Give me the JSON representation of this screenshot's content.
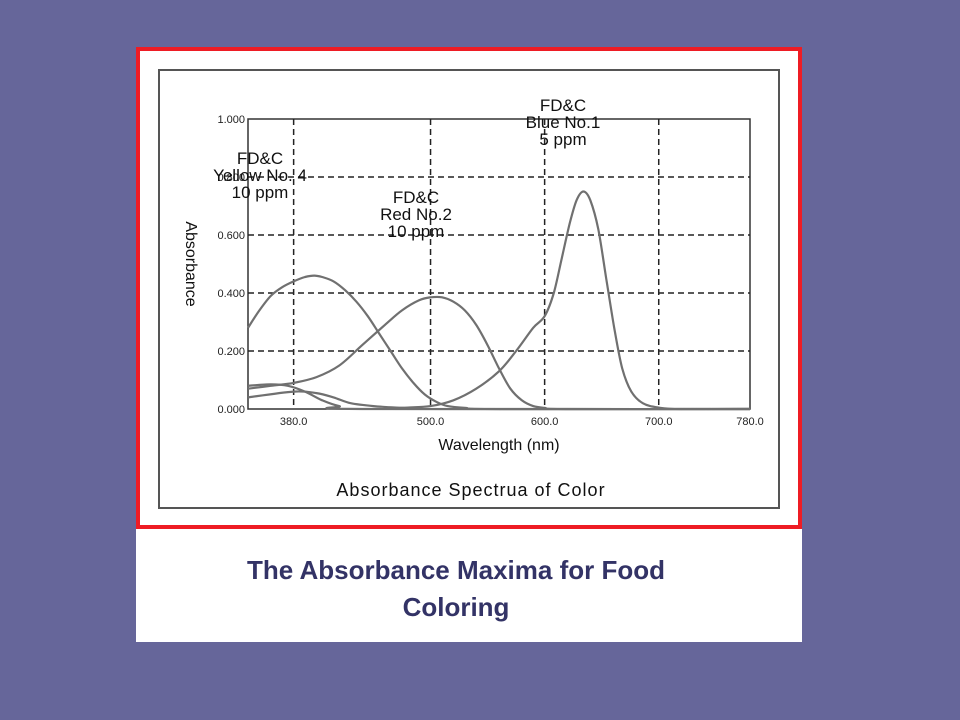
{
  "slide": {
    "caption_line1": "The Absorbance Maxima for Food",
    "caption_line2": "Coloring",
    "background_color": "#66669a",
    "frame_color": "#ee1c24",
    "caption_color": "#333366"
  },
  "chart_data": {
    "type": "line",
    "title": "Absorbance Spectrua of Color",
    "xlabel": "Wavelength (nm)",
    "ylabel": "Absorbance",
    "xlim": [
      340,
      780
    ],
    "ylim": [
      0,
      1.0
    ],
    "x_ticks": [
      380,
      500,
      600,
      700,
      780
    ],
    "x_tick_labels": [
      "380.0",
      "500.0",
      "600.0",
      "700.0",
      "780.0"
    ],
    "y_ticks": [
      0,
      0.2,
      0.4,
      0.6,
      0.8,
      1.0
    ],
    "y_tick_labels": [
      "0.000",
      "0.200",
      "0.400",
      "0.600",
      "0.800",
      "1.000"
    ],
    "grid": true,
    "legend": "none",
    "line_color": "#707070",
    "series": [
      {
        "points": [
          [
            340,
            0.28
          ],
          [
            350,
            0.34
          ],
          [
            360,
            0.39
          ],
          [
            370,
            0.42
          ],
          [
            380,
            0.44
          ],
          [
            390,
            0.455
          ],
          [
            398,
            0.46
          ],
          [
            405,
            0.455
          ],
          [
            415,
            0.44
          ],
          [
            425,
            0.41
          ],
          [
            435,
            0.37
          ],
          [
            445,
            0.32
          ],
          [
            455,
            0.26
          ],
          [
            465,
            0.2
          ],
          [
            475,
            0.14
          ],
          [
            485,
            0.09
          ],
          [
            495,
            0.05
          ],
          [
            505,
            0.025
          ],
          [
            515,
            0.01
          ],
          [
            530,
            0.004
          ],
          [
            560,
            0.0
          ],
          [
            780,
            0.0
          ]
        ],
        "annotation": [
          "FD&C",
          "Yellow No. 4",
          "10 ppm"
        ]
      },
      {
        "points": [
          [
            340,
            0.07
          ],
          [
            360,
            0.08
          ],
          [
            380,
            0.09
          ],
          [
            400,
            0.11
          ],
          [
            420,
            0.15
          ],
          [
            440,
            0.22
          ],
          [
            460,
            0.29
          ],
          [
            475,
            0.34
          ],
          [
            490,
            0.375
          ],
          [
            500,
            0.385
          ],
          [
            510,
            0.385
          ],
          [
            520,
            0.37
          ],
          [
            530,
            0.34
          ],
          [
            540,
            0.29
          ],
          [
            550,
            0.22
          ],
          [
            560,
            0.14
          ],
          [
            570,
            0.07
          ],
          [
            580,
            0.03
          ],
          [
            590,
            0.01
          ],
          [
            600,
            0.004
          ],
          [
            620,
            0.0
          ],
          [
            780,
            0.0
          ]
        ],
        "annotation": [
          "FD&C",
          "Red No.2",
          "10 ppm"
        ]
      },
      {
        "points": [
          [
            340,
            0.04
          ],
          [
            380,
            0.06
          ],
          [
            400,
            0.055
          ],
          [
            415,
            0.04
          ],
          [
            430,
            0.02
          ],
          [
            450,
            0.01
          ],
          [
            470,
            0.005
          ],
          [
            480,
            0.005
          ],
          [
            500,
            0.01
          ],
          [
            520,
            0.03
          ],
          [
            540,
            0.07
          ],
          [
            560,
            0.13
          ],
          [
            575,
            0.2
          ],
          [
            590,
            0.28
          ],
          [
            600,
            0.32
          ],
          [
            608,
            0.4
          ],
          [
            615,
            0.52
          ],
          [
            622,
            0.64
          ],
          [
            628,
            0.72
          ],
          [
            634,
            0.75
          ],
          [
            640,
            0.72
          ],
          [
            647,
            0.62
          ],
          [
            654,
            0.45
          ],
          [
            661,
            0.28
          ],
          [
            668,
            0.14
          ],
          [
            676,
            0.06
          ],
          [
            686,
            0.02
          ],
          [
            700,
            0.005
          ],
          [
            720,
            0.0
          ],
          [
            780,
            0.0
          ]
        ],
        "annotation": [
          "FD&C",
          "Blue No.1",
          "5 ppm"
        ]
      },
      {
        "points": [
          [
            340,
            0.08
          ],
          [
            360,
            0.085
          ],
          [
            375,
            0.08
          ],
          [
            390,
            0.06
          ],
          [
            405,
            0.03
          ],
          [
            420,
            0.01
          ],
          [
            440,
            0.0
          ],
          [
            780,
            0.0
          ]
        ]
      }
    ]
  }
}
